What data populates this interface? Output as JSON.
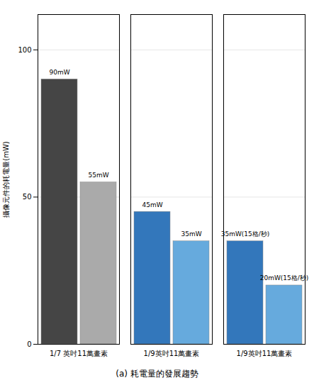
{
  "chart_data": {
    "type": "bar",
    "title": "(a) 耗電量的發展趨勢",
    "ylabel": "攝像元件的耗電量(mW)",
    "categories": [
      "1/7 英吋11萬畫素",
      "1/9英吋11萬畫素",
      "1/9英吋11萬畫素"
    ],
    "series": [
      {
        "values": [
          90,
          45,
          35
        ],
        "value_labels": [
          "90mW",
          "45mW",
          "35mW(15格/秒)"
        ],
        "colors": [
          "#454545",
          "#3377bb",
          "#3377bb"
        ]
      },
      {
        "values": [
          55,
          35,
          20
        ],
        "value_labels": [
          "55mW",
          "35mW",
          "20mW(15格/秒)"
        ],
        "colors": [
          "#aaaaaa",
          "#66aadd",
          "#66aadd"
        ]
      }
    ],
    "ylim": [
      0,
      112
    ],
    "yticks": [
      0,
      50,
      100
    ],
    "grid": true,
    "data_labels": true
  }
}
